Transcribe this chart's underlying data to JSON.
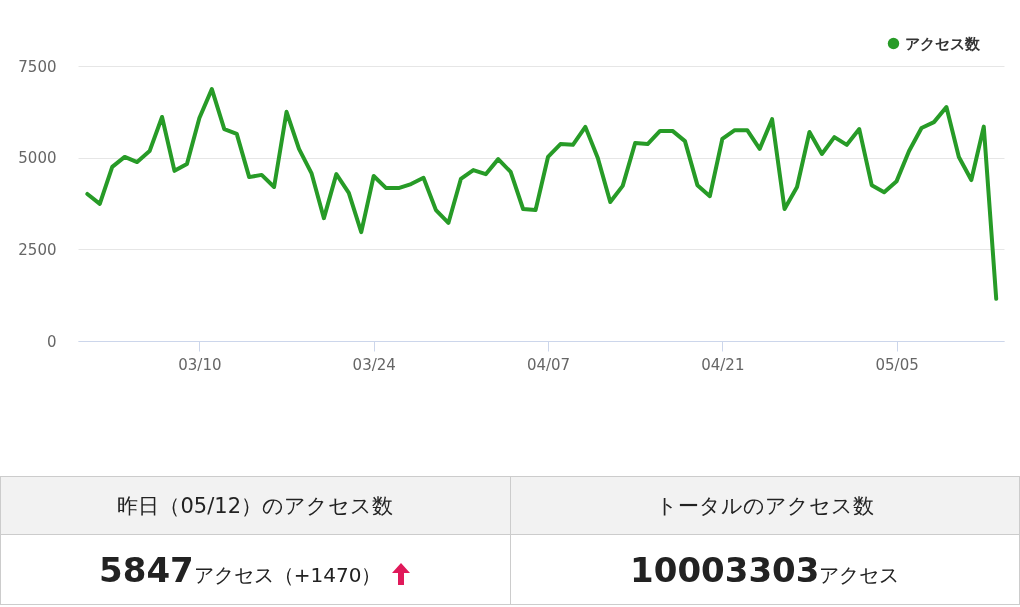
{
  "chart_data": [
    {
      "type": "line",
      "x": [
        "--03-01",
        "--03-02",
        "--03-03",
        "--03-04",
        "--03-05",
        "--03-06",
        "--03-07",
        "--03-08",
        "--03-09",
        "--03-10",
        "--03-11",
        "--03-12",
        "--03-13",
        "--03-14",
        "--03-15",
        "--03-16",
        "--03-17",
        "--03-18",
        "--03-19",
        "--03-20",
        "--03-21",
        "--03-22",
        "--03-23",
        "--03-24",
        "--03-25",
        "--03-26",
        "--03-27",
        "--03-28",
        "--03-29",
        "--03-30",
        "--03-31",
        "--04-01",
        "--04-02",
        "--04-03",
        "--04-04",
        "--04-05",
        "--04-06",
        "--04-07",
        "--04-08",
        "--04-09",
        "--04-10",
        "--04-11",
        "--04-12",
        "--04-13",
        "--04-14",
        "--04-15",
        "--04-16",
        "--04-17",
        "--04-18",
        "--04-19",
        "--04-20",
        "--04-21",
        "--04-22",
        "--04-23",
        "--04-24",
        "--04-25",
        "--04-26",
        "--04-27",
        "--04-28",
        "--04-29",
        "--04-30",
        "--05-01",
        "--05-02",
        "--05-03",
        "--05-04",
        "--05-05",
        "--05-06",
        "--05-07",
        "--05-08",
        "--05-09",
        "--05-10",
        "--05-11",
        "--05-12",
        "--05-13"
      ],
      "series": [
        {
          "name": "アクセス数",
          "color": "#279b27",
          "values": [
            4010,
            3740,
            4750,
            5020,
            4880,
            5180,
            6110,
            4640,
            4830,
            6080,
            6870,
            5780,
            5650,
            4470,
            4530,
            4200,
            6250,
            5240,
            4580,
            3350,
            4550,
            4040,
            2970,
            4500,
            4170,
            4170,
            4280,
            4450,
            3570,
            3220,
            4420,
            4660,
            4550,
            4960,
            4610,
            3600,
            3570,
            5020,
            5370,
            5350,
            5840,
            4990,
            3790,
            4230,
            5400,
            5370,
            5730,
            5730,
            5450,
            4250,
            3950,
            5510,
            5750,
            5750,
            5240,
            6050,
            3600,
            4200,
            5700,
            5100,
            5560,
            5350,
            5780,
            4250,
            4060,
            4360,
            5180,
            5810,
            5970,
            6380,
            5020,
            4390,
            5847,
            1150
          ]
        }
      ],
      "xlim": [
        "--02-28T06:00",
        "--05-13T15:00"
      ],
      "xticks": [
        {
          "value": "--03-10",
          "label": "03/10"
        },
        {
          "value": "--03-24",
          "label": "03/24"
        },
        {
          "value": "--04-07",
          "label": "04/07"
        },
        {
          "value": "--04-21",
          "label": "04/21"
        },
        {
          "value": "--05-05",
          "label": "05/05"
        }
      ],
      "ylim": [
        0,
        7500
      ],
      "yticks": [
        0,
        2500,
        5000,
        7500
      ],
      "grid": "y",
      "legend": "top right",
      "marker": "none",
      "line_style": "solid"
    },
    {
      "type": "other",
      "annotations": [
        "昨日（05/12）のアクセス数",
        "トータルのアクセス数",
        "5847アクセス（+1470）",
        "10003303アクセス"
      ]
    }
  ]
}
